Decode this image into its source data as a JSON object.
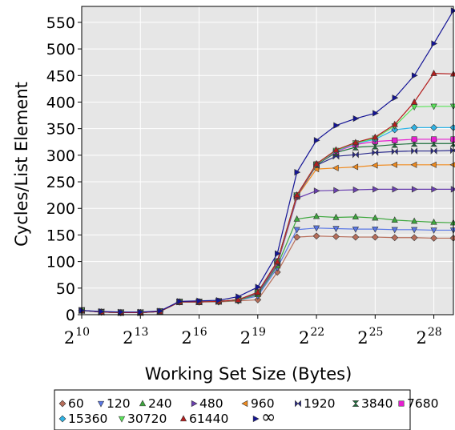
{
  "chart_data": {
    "type": "line",
    "title": "",
    "xlabel": "Working Set Size (Bytes)",
    "ylabel": "Cycles/List Element",
    "x_scale": "log2",
    "x_exponents": [
      10,
      11,
      12,
      13,
      14,
      15,
      16,
      17,
      18,
      19,
      20,
      21,
      22,
      23,
      24,
      25,
      26,
      27,
      28,
      29
    ],
    "x_tick_exponents": [
      10,
      13,
      16,
      19,
      22,
      25,
      28
    ],
    "x_tick_base": "2",
    "xlim_exponent": [
      10,
      29
    ],
    "y_ticks": [
      0,
      50,
      100,
      150,
      200,
      250,
      300,
      350,
      400,
      450,
      500,
      550
    ],
    "ylim": [
      0,
      580
    ],
    "grid": true,
    "legend_position": "bottom",
    "series": [
      {
        "name": "60",
        "color": "#b86e5a",
        "marker": "diamond",
        "values": [
          8,
          5,
          4,
          4,
          6,
          24,
          24,
          24,
          26,
          28,
          80,
          146,
          148,
          147,
          146,
          146,
          145,
          145,
          144,
          144
        ]
      },
      {
        "name": "120",
        "color": "#5a78e6",
        "marker": "tri-down",
        "values": [
          8,
          5,
          4,
          4,
          6,
          24,
          24,
          25,
          27,
          35,
          88,
          160,
          163,
          162,
          161,
          161,
          160,
          160,
          159,
          159
        ]
      },
      {
        "name": "240",
        "color": "#3ea83e",
        "marker": "tri-up",
        "values": [
          8,
          5,
          4,
          4,
          6,
          24,
          24,
          25,
          27,
          38,
          92,
          180,
          185,
          183,
          184,
          182,
          178,
          176,
          174,
          173
        ]
      },
      {
        "name": "480",
        "color": "#6a3fb0",
        "marker": "tri-right",
        "values": [
          8,
          5,
          4,
          4,
          6,
          24,
          24,
          25,
          28,
          40,
          95,
          219,
          233,
          234,
          235,
          236,
          236,
          236,
          236,
          236
        ]
      },
      {
        "name": "960",
        "color": "#f08a1e",
        "marker": "tri-left",
        "values": [
          8,
          5,
          4,
          4,
          6,
          24,
          24,
          25,
          28,
          42,
          98,
          222,
          274,
          276,
          278,
          281,
          282,
          282,
          282,
          282
        ]
      },
      {
        "name": "1920",
        "color": "#2a2a8c",
        "marker": "bowtie",
        "values": [
          8,
          5,
          4,
          4,
          6,
          24,
          24,
          25,
          28,
          42,
          99,
          223,
          281,
          298,
          301,
          305,
          307,
          308,
          308,
          309
        ]
      },
      {
        "name": "3840",
        "color": "#1e6e3c",
        "marker": "hourglass",
        "values": [
          8,
          5,
          4,
          4,
          6,
          24,
          24,
          25,
          28,
          42,
          100,
          224,
          282,
          305,
          315,
          317,
          320,
          322,
          322,
          322
        ]
      },
      {
        "name": "7680",
        "color": "#e81ed2",
        "marker": "square",
        "values": [
          8,
          5,
          4,
          4,
          6,
          24,
          24,
          25,
          28,
          42,
          100,
          224,
          283,
          307,
          320,
          326,
          328,
          330,
          330,
          330
        ]
      },
      {
        "name": "15360",
        "color": "#2fb4e6",
        "marker": "diamond",
        "values": [
          8,
          5,
          4,
          4,
          6,
          24,
          24,
          25,
          28,
          42,
          100,
          225,
          283,
          308,
          322,
          330,
          348,
          352,
          352,
          352
        ]
      },
      {
        "name": "30720",
        "color": "#5ae65a",
        "marker": "tri-down",
        "values": [
          8,
          5,
          4,
          4,
          6,
          24,
          24,
          25,
          28,
          42,
          100,
          225,
          283,
          309,
          323,
          332,
          355,
          391,
          392,
          392
        ]
      },
      {
        "name": "61440",
        "color": "#b41e1e",
        "marker": "tri-up",
        "values": [
          8,
          5,
          4,
          4,
          6,
          24,
          24,
          25,
          28,
          42,
          100,
          225,
          284,
          310,
          324,
          334,
          358,
          400,
          454,
          453
        ]
      },
      {
        "name": "∞",
        "color": "#141496",
        "marker": "tri-right",
        "values": [
          8,
          6,
          5,
          5,
          7,
          25,
          26,
          27,
          34,
          52,
          115,
          268,
          328,
          356,
          369,
          379,
          408,
          450,
          510,
          572
        ]
      }
    ]
  }
}
